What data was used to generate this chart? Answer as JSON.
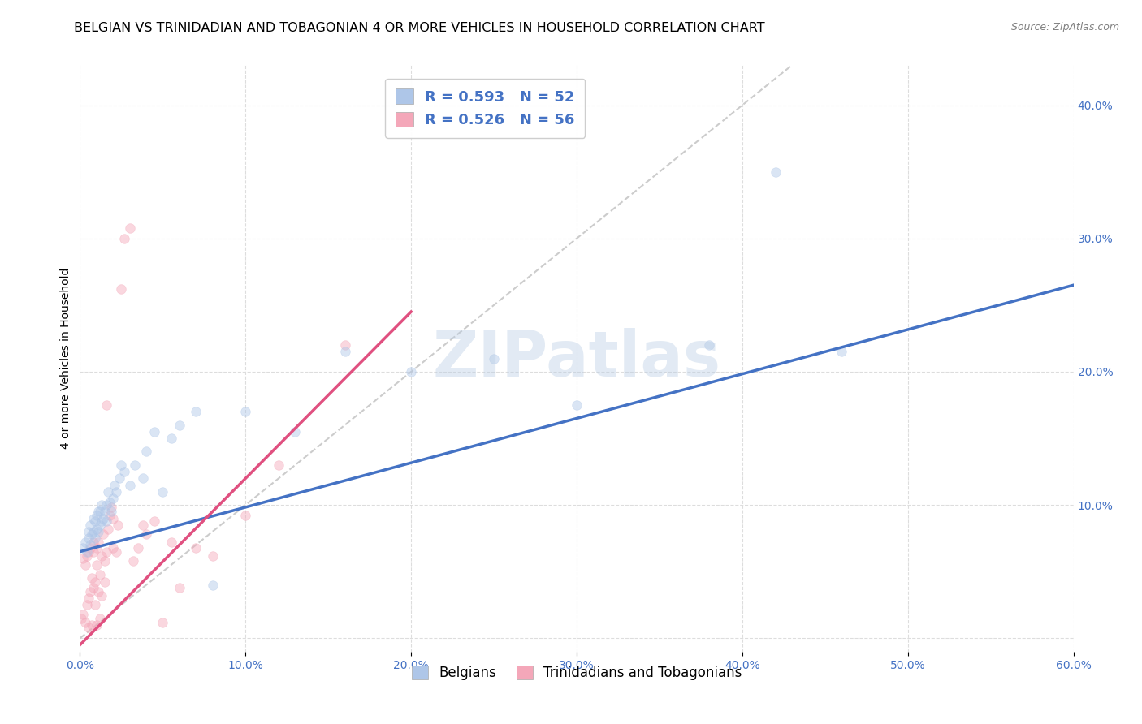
{
  "title": "BELGIAN VS TRINIDADIAN AND TOBAGONIAN 4 OR MORE VEHICLES IN HOUSEHOLD CORRELATION CHART",
  "source": "Source: ZipAtlas.com",
  "ylabel": "4 or more Vehicles in Household",
  "xlim": [
    0.0,
    0.6
  ],
  "ylim": [
    -0.01,
    0.43
  ],
  "xticks": [
    0.0,
    0.1,
    0.2,
    0.3,
    0.4,
    0.5,
    0.6
  ],
  "yticks": [
    0.0,
    0.1,
    0.2,
    0.3,
    0.4
  ],
  "xtick_labels": [
    "0.0%",
    "10.0%",
    "20.0%",
    "30.0%",
    "40.0%",
    "50.0%",
    "60.0%"
  ],
  "ytick_labels": [
    "",
    "10.0%",
    "20.0%",
    "30.0%",
    "40.0%"
  ],
  "belgian_color": "#aec6e8",
  "trinidadian_color": "#f4a7b9",
  "belgian_line_color": "#4472c4",
  "trinidadian_line_color": "#e05080",
  "diagonal_color": "#cccccc",
  "watermark_text": "ZIPatlas",
  "legend_R_belgian": "R = 0.593",
  "legend_N_belgian": "N = 52",
  "legend_R_trinidadian": "R = 0.526",
  "legend_N_trinidadian": "N = 56",
  "belgians_label": "Belgians",
  "trinidadians_label": "Trinidadians and Tobagonians",
  "belgian_x": [
    0.002,
    0.003,
    0.004,
    0.005,
    0.005,
    0.006,
    0.006,
    0.007,
    0.008,
    0.008,
    0.009,
    0.009,
    0.01,
    0.01,
    0.011,
    0.011,
    0.012,
    0.012,
    0.013,
    0.013,
    0.014,
    0.015,
    0.016,
    0.016,
    0.017,
    0.018,
    0.019,
    0.02,
    0.021,
    0.022,
    0.024,
    0.025,
    0.027,
    0.03,
    0.033,
    0.038,
    0.04,
    0.045,
    0.05,
    0.055,
    0.06,
    0.07,
    0.08,
    0.1,
    0.13,
    0.16,
    0.2,
    0.25,
    0.3,
    0.38,
    0.42,
    0.46
  ],
  "belgian_y": [
    0.068,
    0.072,
    0.065,
    0.075,
    0.08,
    0.07,
    0.085,
    0.078,
    0.08,
    0.09,
    0.075,
    0.088,
    0.082,
    0.092,
    0.08,
    0.095,
    0.085,
    0.095,
    0.088,
    0.1,
    0.09,
    0.095,
    0.1,
    0.088,
    0.11,
    0.102,
    0.095,
    0.105,
    0.115,
    0.11,
    0.12,
    0.13,
    0.125,
    0.115,
    0.13,
    0.12,
    0.14,
    0.155,
    0.11,
    0.15,
    0.16,
    0.17,
    0.04,
    0.17,
    0.155,
    0.215,
    0.2,
    0.21,
    0.175,
    0.22,
    0.35,
    0.215
  ],
  "trinidadian_x": [
    0.001,
    0.002,
    0.002,
    0.003,
    0.003,
    0.004,
    0.004,
    0.005,
    0.005,
    0.005,
    0.006,
    0.006,
    0.007,
    0.007,
    0.008,
    0.008,
    0.008,
    0.009,
    0.009,
    0.01,
    0.01,
    0.01,
    0.011,
    0.011,
    0.012,
    0.012,
    0.013,
    0.013,
    0.014,
    0.015,
    0.015,
    0.016,
    0.016,
    0.017,
    0.018,
    0.019,
    0.02,
    0.02,
    0.022,
    0.023,
    0.025,
    0.027,
    0.03,
    0.032,
    0.035,
    0.038,
    0.04,
    0.045,
    0.05,
    0.055,
    0.06,
    0.07,
    0.08,
    0.1,
    0.12,
    0.16
  ],
  "trinidadian_y": [
    0.015,
    0.018,
    0.06,
    0.012,
    0.055,
    0.025,
    0.062,
    0.03,
    0.065,
    0.008,
    0.035,
    0.068,
    0.045,
    0.01,
    0.038,
    0.065,
    0.072,
    0.042,
    0.025,
    0.055,
    0.068,
    0.01,
    0.035,
    0.072,
    0.048,
    0.015,
    0.032,
    0.062,
    0.078,
    0.058,
    0.042,
    0.065,
    0.175,
    0.082,
    0.092,
    0.098,
    0.09,
    0.068,
    0.065,
    0.085,
    0.262,
    0.3,
    0.308,
    0.058,
    0.068,
    0.085,
    0.078,
    0.088,
    0.012,
    0.072,
    0.038,
    0.068,
    0.062,
    0.092,
    0.13,
    0.22
  ],
  "belgian_line_x": [
    0.0,
    0.6
  ],
  "belgian_line_y": [
    0.065,
    0.265
  ],
  "trinidadian_line_x": [
    0.0,
    0.2
  ],
  "trinidadian_line_y": [
    -0.005,
    0.245
  ],
  "grid_color": "#dddddd",
  "background_color": "#ffffff",
  "title_fontsize": 11.5,
  "axis_fontsize": 10,
  "tick_fontsize": 10,
  "marker_size": 70,
  "marker_alpha": 0.45
}
